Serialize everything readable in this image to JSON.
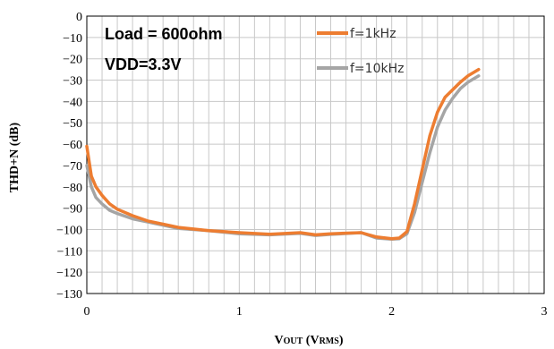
{
  "chart_data": {
    "type": "line",
    "xlabel": {
      "main": "V",
      "sub1": "OUT",
      "mid": " (V",
      "sub2": "RMS",
      "end": ")"
    },
    "ylabel": "THD+N (dB)",
    "xlim": [
      0,
      3
    ],
    "ylim": [
      -130,
      0
    ],
    "xticks": [
      0,
      1,
      2,
      3
    ],
    "yticks": [
      0,
      -10,
      -20,
      -30,
      -40,
      -50,
      -60,
      -70,
      -80,
      -90,
      -100,
      -110,
      -120,
      -130
    ],
    "grid": true,
    "annotations": [
      "Load = 600ohm",
      "VDD=3.3V"
    ],
    "legend_position": "top-right",
    "series": [
      {
        "name": "f=1kHz",
        "color": "#ED7D31",
        "x": [
          0.0,
          0.03,
          0.06,
          0.1,
          0.15,
          0.2,
          0.3,
          0.4,
          0.5,
          0.6,
          0.8,
          1.0,
          1.2,
          1.4,
          1.5,
          1.6,
          1.8,
          1.9,
          2.0,
          2.05,
          2.1,
          2.15,
          2.2,
          2.25,
          2.3,
          2.35,
          2.4,
          2.45,
          2.5,
          2.57
        ],
        "values": [
          -61,
          -75,
          -80,
          -84,
          -88,
          -90.5,
          -93.5,
          -96,
          -97.5,
          -99,
          -100.5,
          -101.5,
          -102.2,
          -101.5,
          -102.5,
          -102,
          -101.5,
          -103.5,
          -104.3,
          -104,
          -101,
          -88,
          -72,
          -56,
          -45,
          -38,
          -34.5,
          -31,
          -28,
          -25
        ]
      },
      {
        "name": "f=10kHz",
        "color": "#A5A5A5",
        "x": [
          0.0,
          0.03,
          0.06,
          0.1,
          0.15,
          0.2,
          0.3,
          0.4,
          0.5,
          0.6,
          0.8,
          1.0,
          1.2,
          1.4,
          1.5,
          1.6,
          1.8,
          1.9,
          2.0,
          2.05,
          2.1,
          2.15,
          2.2,
          2.25,
          2.3,
          2.35,
          2.4,
          2.45,
          2.5,
          2.57
        ],
        "values": [
          -70,
          -80,
          -85,
          -88,
          -91,
          -92.5,
          -95,
          -96.5,
          -98,
          -99.5,
          -100.5,
          -102,
          -102.5,
          -101.8,
          -102.8,
          -102.3,
          -101.5,
          -104,
          -104.5,
          -104.3,
          -102,
          -92,
          -78,
          -64,
          -52,
          -44,
          -38.5,
          -34,
          -31,
          -28
        ]
      }
    ]
  }
}
